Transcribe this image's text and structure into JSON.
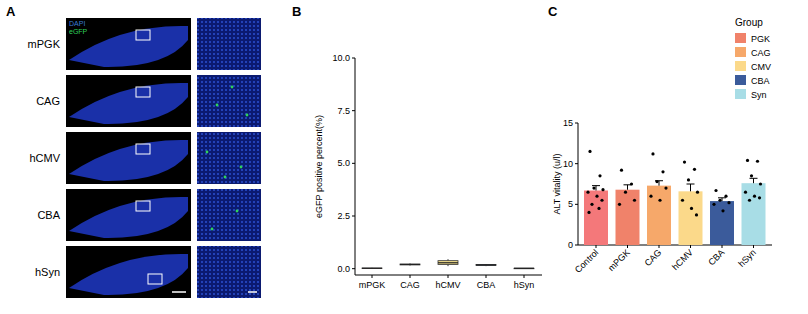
{
  "panel_labels": [
    "A",
    "B",
    "C"
  ],
  "image_panel": {
    "legend": [
      {
        "name": "DAPI",
        "color": "#3a7bd5"
      },
      {
        "name": "eGFP",
        "color": "#2fd35a"
      }
    ],
    "rows": [
      "mPGK",
      "CAG",
      "hCMV",
      "CBA",
      "hSyn"
    ]
  },
  "chart_data": [
    {
      "type": "box",
      "y_label": "eGFP positive percent(%)",
      "categories": [
        "mPGK",
        "CAG",
        "hCMV",
        "CBA",
        "hSyn"
      ],
      "min": [
        0.01,
        0.15,
        0.12,
        0.12,
        0.0
      ],
      "q1": [
        0.02,
        0.18,
        0.2,
        0.15,
        0.01
      ],
      "median": [
        0.02,
        0.2,
        0.28,
        0.18,
        0.02
      ],
      "q3": [
        0.03,
        0.22,
        0.38,
        0.2,
        0.02
      ],
      "max": [
        0.04,
        0.25,
        0.45,
        0.22,
        0.03
      ],
      "colors": [
        "#f08070",
        "#f5a86a",
        "#f3df8c",
        "#3d5a99",
        "#a8dce8"
      ],
      "ylim": [
        -0.3,
        10
      ],
      "yticks": [
        {
          "value": 0,
          "label": "0.0"
        },
        {
          "value": 2.5,
          "label": "2.5"
        },
        {
          "value": 5,
          "label": "5.0"
        },
        {
          "value": 7.5,
          "label": "7.5"
        },
        {
          "value": 10,
          "label": "10.0"
        }
      ]
    },
    {
      "type": "bar",
      "y_label": "ALT vitality (u/l)",
      "categories": [
        "Control",
        "mPGK",
        "CAG",
        "hCMV",
        "CBA",
        "hSyn"
      ],
      "values": [
        6.7,
        6.8,
        7.3,
        6.6,
        5.4,
        7.6
      ],
      "errors": [
        0.6,
        0.6,
        0.6,
        0.9,
        0.4,
        0.6
      ],
      "points": [
        [
          11.5,
          8.5,
          7,
          6.8,
          6.5,
          6,
          5.5,
          5,
          4.5,
          4
        ],
        [
          9.2,
          7.5,
          6.5,
          5.5,
          5
        ],
        [
          11.2,
          9,
          7.8,
          7,
          6,
          5.5
        ],
        [
          10.2,
          9.3,
          8,
          6.5,
          5.5,
          4.5,
          3.7
        ],
        [
          6.7,
          6,
          5.5,
          5.2,
          5,
          4.2
        ],
        [
          10.4,
          10.3,
          8.5,
          7.5,
          6.5,
          6,
          5.8,
          5.5
        ]
      ],
      "colors": [
        "#f4787a",
        "#f0826a",
        "#f6a86a",
        "#fbd98a",
        "#3b5b9b",
        "#a8dde6"
      ],
      "ylim": [
        0,
        15
      ],
      "yticks": [
        0,
        5,
        10,
        15
      ],
      "legend_title": "Group",
      "legend_items": [
        {
          "name": "PGK",
          "color": "#f0826a"
        },
        {
          "name": "CAG",
          "color": "#f6a86a"
        },
        {
          "name": "CMV",
          "color": "#fbd98a"
        },
        {
          "name": "CBA",
          "color": "#3b5b9b"
        },
        {
          "name": "Syn",
          "color": "#a8dde6"
        }
      ],
      "legend": "top-right"
    }
  ]
}
